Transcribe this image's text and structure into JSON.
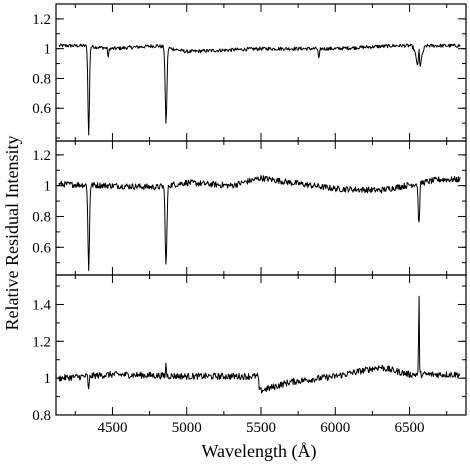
{
  "chart_data": {
    "type": "line",
    "xlabel": "Wavelength (Å)",
    "ylabel": "Relative Residual Intensity",
    "xlim": [
      4120,
      6880
    ],
    "x_ticks": [
      4500,
      5000,
      5500,
      6000,
      6500
    ],
    "x_tick_labels": [
      "4500",
      "5000",
      "5500",
      "6000",
      "6500"
    ],
    "panels": [
      {
        "ylim": [
          0.38,
          1.3
        ],
        "y_ticks": [
          0.6,
          0.8,
          1.0,
          1.2
        ],
        "y_tick_labels": [
          "0.6",
          "0.8",
          "1",
          "1.2"
        ],
        "baseline": [
          [
            4140,
            1.02
          ],
          [
            4300,
            1.02
          ],
          [
            4500,
            1.0
          ],
          [
            4800,
            1.02
          ],
          [
            5000,
            0.98
          ],
          [
            5500,
            1.0
          ],
          [
            6000,
            1.0
          ],
          [
            6400,
            1.02
          ],
          [
            6840,
            1.02
          ]
        ],
        "noise": 0.012,
        "lines": [
          {
            "x": 4340,
            "depth": 0.6,
            "width": 7
          },
          {
            "x": 4861,
            "depth": 0.51,
            "width": 8
          },
          {
            "x": 4472,
            "depth": 0.06,
            "width": 5
          },
          {
            "x": 5890,
            "depth": 0.07,
            "width": 6
          },
          {
            "x": 6563,
            "depth": 0.15,
            "width": 25
          },
          {
            "x": 6563,
            "depth": -0.13,
            "width": 4
          }
        ],
        "steps": []
      },
      {
        "ylim": [
          0.42,
          1.29
        ],
        "y_ticks": [
          0.6,
          0.8,
          1.0,
          1.2
        ],
        "y_tick_labels": [
          "0.6",
          "0.8",
          "1",
          "1.2"
        ],
        "baseline": [
          [
            4140,
            1.01
          ],
          [
            4500,
            1.0
          ],
          [
            4800,
            0.99
          ],
          [
            5000,
            1.02
          ],
          [
            5300,
            1.0
          ],
          [
            5500,
            1.05
          ],
          [
            5700,
            1.02
          ],
          [
            6000,
            0.98
          ],
          [
            6300,
            0.97
          ],
          [
            6700,
            1.04
          ],
          [
            6840,
            1.04
          ]
        ],
        "noise": 0.02,
        "lines": [
          {
            "x": 4340,
            "depth": 0.56,
            "width": 7
          },
          {
            "x": 4861,
            "depth": 0.52,
            "width": 8
          },
          {
            "x": 6563,
            "depth": 0.27,
            "width": 7
          }
        ],
        "steps": []
      },
      {
        "ylim": [
          0.8,
          1.56
        ],
        "y_ticks": [
          0.8,
          1.0,
          1.2,
          1.4
        ],
        "y_tick_labels": [
          "0.8",
          "1",
          "1.2",
          "1.4"
        ],
        "baseline": [
          [
            4140,
            1.0
          ],
          [
            4500,
            1.02
          ],
          [
            5000,
            1.01
          ],
          [
            5480,
            1.01
          ],
          [
            5490,
            0.93
          ],
          [
            5700,
            0.98
          ],
          [
            6000,
            1.01
          ],
          [
            6300,
            1.06
          ],
          [
            6500,
            1.02
          ],
          [
            6840,
            1.02
          ]
        ],
        "noise": 0.018,
        "lines": [
          {
            "x": 4340,
            "depth": 0.08,
            "width": 5
          },
          {
            "x": 4861,
            "depth": -0.08,
            "width": 3
          },
          {
            "x": 6563,
            "depth": -0.49,
            "width": 3
          }
        ],
        "steps": []
      }
    ]
  }
}
